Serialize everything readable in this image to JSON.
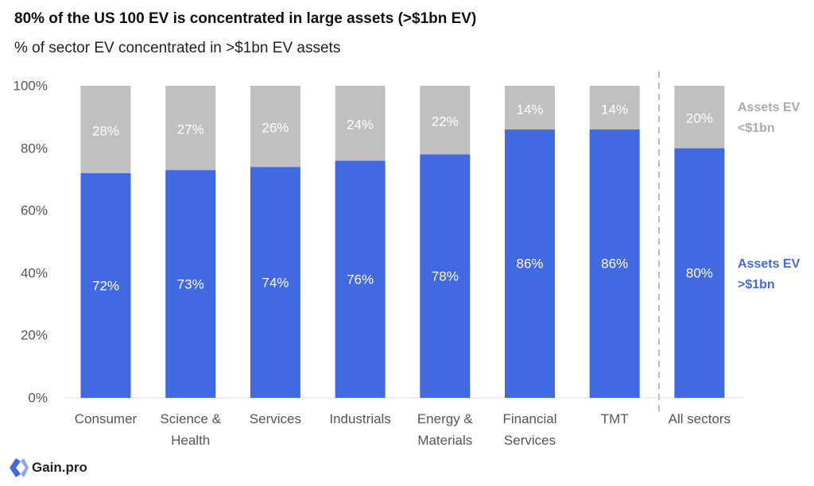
{
  "chart_data": {
    "type": "stacked_bar",
    "title": "80% of the US 100 EV is concentrated in large assets (>$1bn EV)",
    "subtitle": "% of sector EV concentrated in >$1bn EV assets",
    "categories": [
      "Consumer",
      "Science & Health",
      "Services",
      "Industrials",
      "Energy & Materials",
      "Financial Services",
      "TMT",
      "All sectors"
    ],
    "series": [
      {
        "name": "Assets EV >$1bn",
        "color": "#4169e1",
        "values": [
          72,
          73,
          74,
          76,
          78,
          86,
          86,
          80
        ],
        "value_labels": [
          "72%",
          "73%",
          "74%",
          "76%",
          "78%",
          "86%",
          "86%",
          "80%"
        ]
      },
      {
        "name": "Assets EV <$1bn",
        "color": "#c0c0c0",
        "values": [
          28,
          27,
          26,
          24,
          22,
          14,
          14,
          20
        ],
        "value_labels": [
          "28%",
          "27%",
          "26%",
          "24%",
          "22%",
          "14%",
          "14%",
          "20%"
        ]
      }
    ],
    "ylim": [
      0,
      100
    ],
    "yticks": [
      {
        "value": 0,
        "label": "0%"
      },
      {
        "value": 20,
        "label": "20%"
      },
      {
        "value": 40,
        "label": "40%"
      },
      {
        "value": 60,
        "label": "60%"
      },
      {
        "value": 80,
        "label": "80%"
      },
      {
        "value": 100,
        "label": "100%"
      }
    ],
    "legend_position": "right"
  },
  "logo": "Gain.pro"
}
